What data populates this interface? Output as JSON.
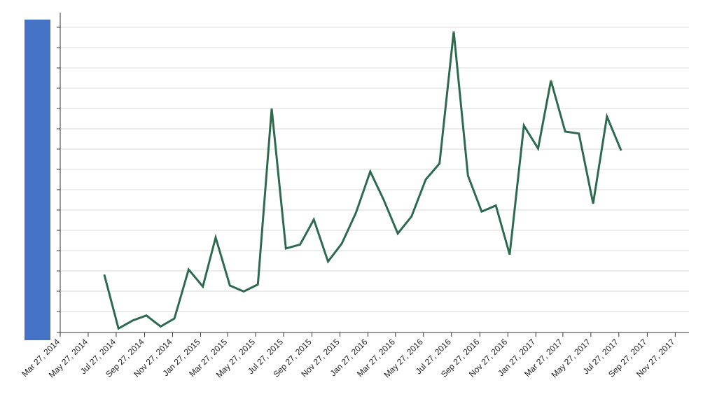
{
  "chart_data": {
    "type": "line",
    "title": "",
    "xlabel": "",
    "ylabel": "",
    "grid": true,
    "legend": "none",
    "ylim": [
      0,
      32
    ],
    "xlim": [
      "2014-03-27",
      "2017-12-27"
    ],
    "x_tick_labels": [
      "Mar 27, 2014",
      "May 27, 2014",
      "Jul 27, 2014",
      "Sep 27, 2014",
      "Nov 27, 2014",
      "Jan 27, 2015",
      "Mar 27, 2015",
      "May 27, 2015",
      "Jul 27, 2015",
      "Sep 27, 2015",
      "Nov 27, 2015",
      "Jan 27, 2016",
      "Mar 27, 2016",
      "May 27, 2016",
      "Jul 27, 2016",
      "Sep 27, 2016",
      "Nov 27, 2016",
      "Jan 27, 2017",
      "Mar 27, 2017",
      "May 27, 2017",
      "Jul 27, 2017",
      "Sep 27, 2017",
      "Nov 27, 2017"
    ],
    "x": [
      "2014-07-01",
      "2014-08-01",
      "2014-09-01",
      "2014-10-01",
      "2014-11-01",
      "2014-12-01",
      "2015-01-01",
      "2015-02-01",
      "2015-03-01",
      "2015-04-01",
      "2015-05-01",
      "2015-06-01",
      "2015-07-01",
      "2015-08-01",
      "2015-09-01",
      "2015-10-01",
      "2015-11-01",
      "2015-12-01",
      "2016-01-01",
      "2016-02-01",
      "2016-03-01",
      "2016-04-01",
      "2016-05-01",
      "2016-06-01",
      "2016-07-01",
      "2016-08-01",
      "2016-09-01",
      "2016-10-01",
      "2016-11-01",
      "2016-12-01",
      "2017-01-01",
      "2017-02-01",
      "2017-03-01",
      "2017-04-01",
      "2017-05-01",
      "2017-06-01",
      "2017-07-01",
      "2017-08-01"
    ],
    "series": [
      {
        "color": "#2d6a4f",
        "values": [
          5.8,
          0.4,
          1.2,
          1.7,
          0.6,
          1.4,
          6.3,
          4.6,
          9.5,
          4.7,
          4.1,
          4.8,
          22.4,
          8.4,
          8.8,
          11.3,
          7.1,
          8.9,
          12.0,
          16.1,
          13.3,
          9.9,
          11.6,
          15.3,
          16.9,
          30.1,
          15.7,
          12.1,
          12.7,
          7.8,
          20.7,
          18.4,
          25.2,
          20.1,
          19.9,
          12.9,
          21.6,
          18.2
        ]
      }
    ]
  },
  "legend_swatch": {
    "color": "#4472c4"
  }
}
